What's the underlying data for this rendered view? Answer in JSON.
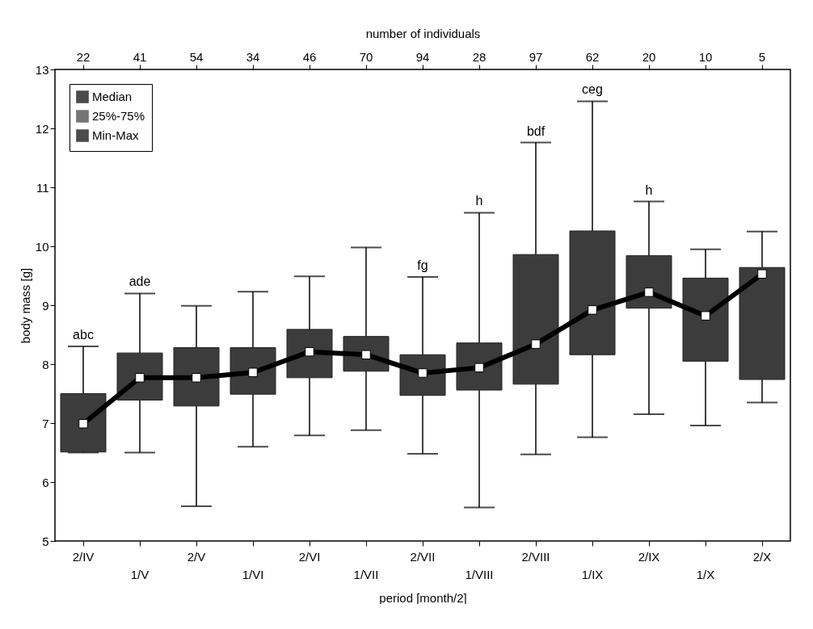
{
  "chart_data": {
    "type": "box",
    "xlabel": "period [month/2]",
    "ylabel": "body mass [g]",
    "x2label": "number of individuals",
    "categories": [
      "2/IV",
      "1/V",
      "2/V",
      "1/VI",
      "2/VI",
      "1/VII",
      "2/VII",
      "1/VIII",
      "2/VIII",
      "1/IX",
      "2/IX",
      "1/X",
      "2/X"
    ],
    "series": [
      {
        "name": "Median",
        "type": "line",
        "color": "#000000",
        "marker": "square",
        "values": [
          6.99,
          7.77,
          7.77,
          7.86,
          8.21,
          8.16,
          7.85,
          7.94,
          8.34,
          8.92,
          9.22,
          8.82,
          9.53
        ]
      },
      {
        "name": "25%-75%",
        "type": "box",
        "color": "#3c3c3c",
        "boxes": [
          {
            "low": 6.5,
            "q1": 6.51,
            "q3": 7.5,
            "high": 8.3
          },
          {
            "low": 6.5,
            "q1": 7.39,
            "q3": 8.19,
            "high": 9.2
          },
          {
            "low": 5.59,
            "q1": 7.29,
            "q3": 8.28,
            "high": 8.99
          },
          {
            "low": 6.6,
            "q1": 7.49,
            "q3": 8.28,
            "high": 9.23
          },
          {
            "low": 6.79,
            "q1": 7.77,
            "q3": 8.59,
            "high": 9.49
          },
          {
            "low": 6.88,
            "q1": 7.88,
            "q3": 8.47,
            "high": 9.98
          },
          {
            "low": 6.48,
            "q1": 7.47,
            "q3": 8.16,
            "high": 9.48
          },
          {
            "low": 5.57,
            "q1": 7.56,
            "q3": 8.36,
            "high": 10.57
          },
          {
            "low": 6.47,
            "q1": 7.66,
            "q3": 9.86,
            "high": 11.76
          },
          {
            "low": 6.76,
            "q1": 8.16,
            "q3": 10.26,
            "high": 12.46
          },
          {
            "low": 7.15,
            "q1": 8.95,
            "q3": 9.84,
            "high": 10.76
          },
          {
            "low": 6.96,
            "q1": 8.05,
            "q3": 9.46,
            "high": 9.95
          },
          {
            "low": 7.35,
            "q1": 7.74,
            "q3": 9.64,
            "high": 10.25
          }
        ]
      }
    ],
    "ylim": [
      5,
      13
    ],
    "yticks": [
      5,
      6,
      7,
      8,
      9,
      10,
      11,
      12,
      13
    ],
    "grid": false,
    "legend": "top left",
    "annotations": [
      "Min-Max",
      {
        "text": "abc",
        "x": "2/IV",
        "y": 8.3
      },
      {
        "text": "ade",
        "x": "1/V",
        "y": 9.2
      },
      {
        "text": "fg",
        "x": "2/VII",
        "y": 9.48
      },
      {
        "text": "h",
        "x": "1/VIII",
        "y": 10.57
      },
      {
        "text": "bdf",
        "x": "2/VIII",
        "y": 11.76
      },
      {
        "text": "ceg",
        "x": "1/IX",
        "y": 12.46
      },
      {
        "text": "h",
        "x": "2/IX",
        "y": 10.76
      },
      {
        "text": "22",
        "x": "2/IV"
      },
      {
        "text": "41",
        "x": "1/V"
      },
      {
        "text": "54",
        "x": "2/V"
      },
      {
        "text": "34",
        "x": "1/VI"
      },
      {
        "text": "46",
        "x": "2/VI"
      },
      {
        "text": "70",
        "x": "1/VII"
      },
      {
        "text": "94",
        "x": "2/VII"
      },
      {
        "text": "28",
        "x": "1/VIII"
      },
      {
        "text": "97",
        "x": "2/VIII"
      },
      {
        "text": "62",
        "x": "1/IX"
      },
      {
        "text": "20",
        "x": "2/IX"
      },
      {
        "text": "10",
        "x": "1/X"
      },
      {
        "text": "5",
        "x": "2/X"
      }
    ]
  }
}
